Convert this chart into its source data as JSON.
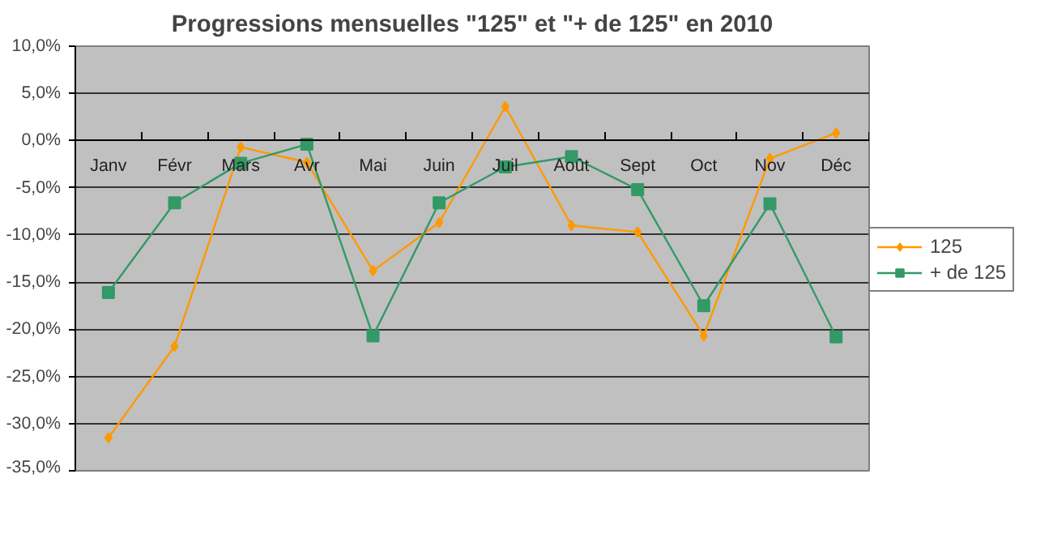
{
  "chart_data": {
    "type": "line",
    "title": "Progressions mensuelles \"125\" et \"+ de 125\" en 2010",
    "categories": [
      "Janv",
      "Févr",
      "Mars",
      "Avr",
      "Mai",
      "Juin",
      "Juil",
      "Août",
      "Sept",
      "Oct",
      "Nov",
      "Déc"
    ],
    "series": [
      {
        "name": "125",
        "color": "#ff9900",
        "marker": "diamond",
        "values": [
          -31.5,
          -21.8,
          -0.7,
          -2.3,
          -13.8,
          -8.7,
          3.6,
          -9.0,
          -9.7,
          -20.7,
          -1.9,
          0.8
        ]
      },
      {
        "name": "+ de 125",
        "color": "#339966",
        "marker": "square",
        "values": [
          -16.1,
          -6.6,
          -2.4,
          -0.4,
          -20.7,
          -6.6,
          -2.8,
          -1.7,
          -5.2,
          -17.5,
          -6.7,
          -20.8
        ]
      }
    ],
    "ylim": [
      -35,
      10
    ],
    "yticks": [
      {
        "value": 10,
        "label": "10,0%"
      },
      {
        "value": 5,
        "label": "5,0%"
      },
      {
        "value": 0,
        "label": "0,0%"
      },
      {
        "value": -5,
        "label": "-5,0%"
      },
      {
        "value": -10,
        "label": "-10,0%"
      },
      {
        "value": -15,
        "label": "-15,0%"
      },
      {
        "value": -20,
        "label": "-20,0%"
      },
      {
        "value": -25,
        "label": "-25,0%"
      },
      {
        "value": -30,
        "label": "-30,0%"
      },
      {
        "value": -35,
        "label": "-35,0%"
      }
    ],
    "grid": "y",
    "legend": "right",
    "line_style": "solid"
  }
}
